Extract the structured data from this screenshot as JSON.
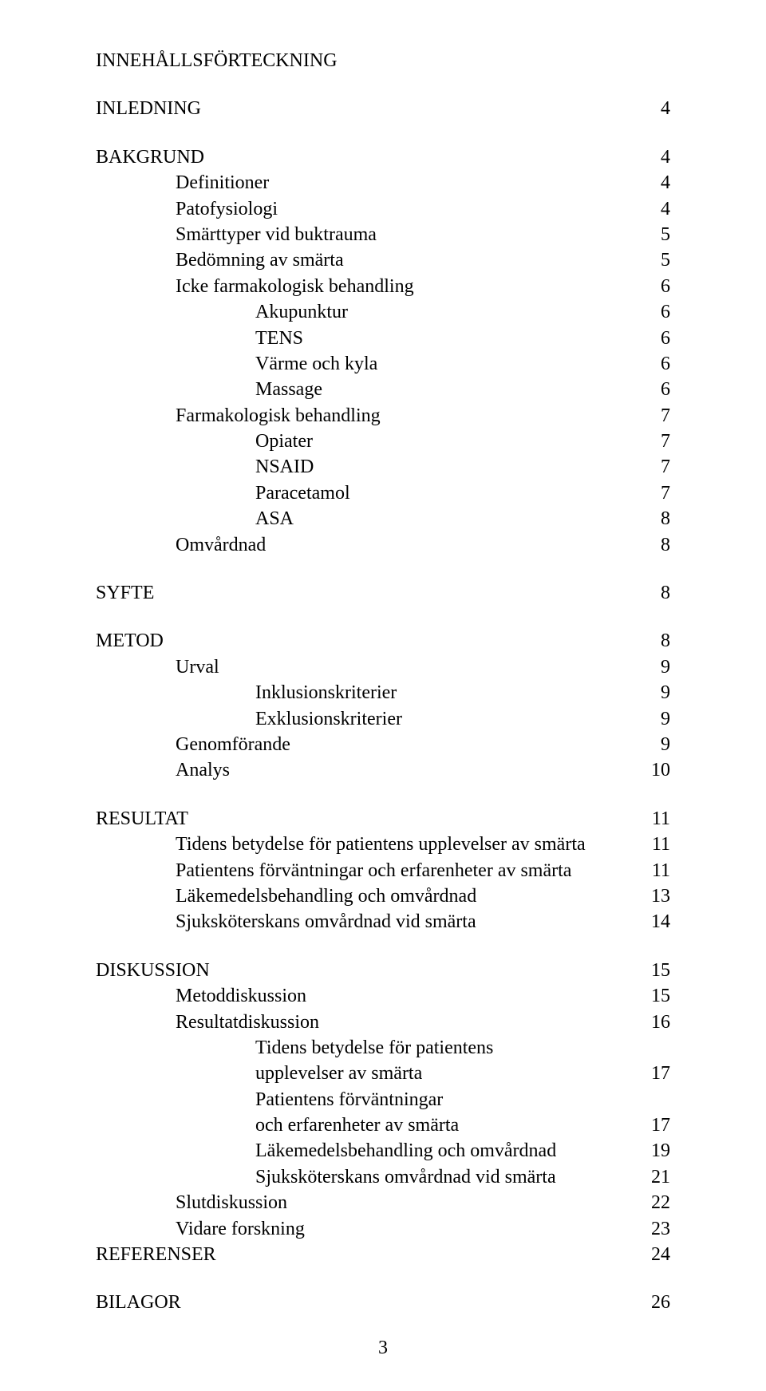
{
  "title": "INNEHÅLLSFÖRTECKNING",
  "page_number": "3",
  "entries": [
    {
      "label": "INLEDNING",
      "page": "4",
      "indent": 0,
      "gap_before": false
    },
    {
      "label": "BAKGRUND",
      "page": "4",
      "indent": 0,
      "gap_before": true
    },
    {
      "label": "Definitioner",
      "page": "4",
      "indent": 1
    },
    {
      "label": "Patofysiologi",
      "page": "4",
      "indent": 1
    },
    {
      "label": "Smärttyper vid buktrauma",
      "page": "5",
      "indent": 1
    },
    {
      "label": "Bedömning av smärta",
      "page": "5",
      "indent": 1
    },
    {
      "label": "Icke farmakologisk behandling",
      "page": "6",
      "indent": 1
    },
    {
      "label": "Akupunktur",
      "page": "6",
      "indent": 2
    },
    {
      "label": "TENS",
      "page": "6",
      "indent": 2
    },
    {
      "label": "Värme och kyla",
      "page": "6",
      "indent": 2
    },
    {
      "label": "Massage",
      "page": "6",
      "indent": 2
    },
    {
      "label": "Farmakologisk behandling",
      "page": "7",
      "indent": 1
    },
    {
      "label": "Opiater",
      "page": "7",
      "indent": 2
    },
    {
      "label": "NSAID",
      "page": "7",
      "indent": 2
    },
    {
      "label": "Paracetamol",
      "page": "7",
      "indent": 2
    },
    {
      "label": "ASA",
      "page": "8",
      "indent": 2
    },
    {
      "label": "Omvårdnad",
      "page": "8",
      "indent": 1
    },
    {
      "label": "SYFTE",
      "page": "8",
      "indent": 0,
      "gap_before": true
    },
    {
      "label": "METOD",
      "page": "8",
      "indent": 0,
      "gap_before": true
    },
    {
      "label": "Urval",
      "page": "9",
      "indent": 1
    },
    {
      "label": "Inklusionskriterier",
      "page": "9",
      "indent": 2
    },
    {
      "label": "Exklusionskriterier",
      "page": "9",
      "indent": 2
    },
    {
      "label": "Genomförande",
      "page": "9",
      "indent": 1
    },
    {
      "label": "Analys",
      "page": "10",
      "indent": 1
    },
    {
      "label": "RESULTAT",
      "page": "11",
      "indent": 0,
      "gap_before": true
    },
    {
      "label": "Tidens betydelse för patientens upplevelser av smärta",
      "page": "11",
      "indent": 1
    },
    {
      "label": "Patientens förväntningar och erfarenheter av smärta",
      "page": "11",
      "indent": 1
    },
    {
      "label": "Läkemedelsbehandling och omvårdnad",
      "page": "13",
      "indent": 1
    },
    {
      "label": "Sjuksköterskans omvårdnad vid smärta",
      "page": "14",
      "indent": 1
    },
    {
      "label": "DISKUSSION",
      "page": "15",
      "indent": 0,
      "gap_before": true
    },
    {
      "label": "Metoddiskussion",
      "page": "15",
      "indent": 1
    },
    {
      "label": "Resultatdiskussion",
      "page": "16",
      "indent": 1
    },
    {
      "label": "Tidens betydelse för patientens",
      "page": "",
      "indent": 2
    },
    {
      "label": "upplevelser av smärta",
      "page": "17",
      "indent": 2
    },
    {
      "label": "Patientens förväntningar",
      "page": "",
      "indent": 2
    },
    {
      "label": "och erfarenheter av smärta",
      "page": "17",
      "indent": 2
    },
    {
      "label": "Läkemedelsbehandling och omvårdnad",
      "page": "19",
      "indent": 2
    },
    {
      "label": "Sjuksköterskans omvårdnad vid smärta",
      "page": "21",
      "indent": 2
    },
    {
      "label": "Slutdiskussion",
      "page": "22",
      "indent": 1
    },
    {
      "label": "Vidare forskning",
      "page": "23",
      "indent": 1
    },
    {
      "label": "REFERENSER",
      "page": "24",
      "indent": 0
    },
    {
      "label": "BILAGOR",
      "page": "26",
      "indent": 0,
      "gap_before": true
    }
  ]
}
